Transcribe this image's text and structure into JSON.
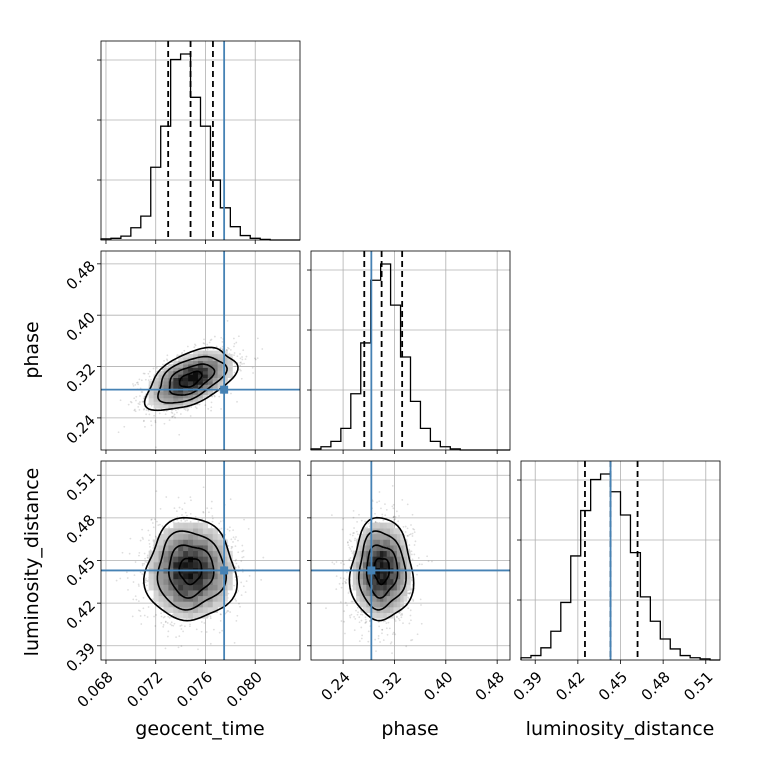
{
  "chart_data": {
    "type": "corner",
    "parameters": [
      {
        "name": "geocent_time",
        "label": "geocent_time",
        "truth": 0.0775,
        "quantiles": [
          0.073,
          0.0748,
          0.0766
        ],
        "median": 0.0748,
        "range": [
          0.0676,
          0.0836
        ],
        "ticks": [
          0.068,
          0.072,
          0.076,
          0.08
        ],
        "tick_labels": [
          "0.068",
          "0.072",
          "0.076",
          "0.080"
        ],
        "hist": {
          "edges": [
            0.0676,
            0.0684,
            0.0692,
            0.07,
            0.0708,
            0.0716,
            0.0724,
            0.0732,
            0.074,
            0.0748,
            0.0756,
            0.0764,
            0.0772,
            0.078,
            0.0788,
            0.0796,
            0.0804,
            0.0812,
            0.082,
            0.0828,
            0.0836
          ],
          "counts": [
            2,
            3,
            7,
            22,
            43,
            131,
            205,
            325,
            335,
            257,
            205,
            108,
            58,
            24,
            8,
            3,
            1,
            0,
            0,
            0
          ]
        }
      },
      {
        "name": "phase",
        "label": "phase",
        "truth": 0.284,
        "quantiles": [
          0.273,
          0.3,
          0.332
        ],
        "median": 0.3,
        "range": [
          0.19,
          0.5
        ],
        "ticks": [
          0.24,
          0.32,
          0.4,
          0.48
        ],
        "tick_labels": [
          "0.24",
          "0.32",
          "0.40",
          "0.48"
        ],
        "hist": {
          "edges": [
            0.19,
            0.2055,
            0.221,
            0.2365,
            0.252,
            0.2675,
            0.283,
            0.2985,
            0.314,
            0.3295,
            0.345,
            0.3605,
            0.376,
            0.3915,
            0.407,
            0.4225,
            0.438,
            0.4535,
            0.469,
            0.4845,
            0.5
          ],
          "counts": [
            1,
            3,
            8,
            20,
            52,
            99,
            157,
            172,
            134,
            86,
            45,
            20,
            8,
            3,
            1,
            0,
            0,
            0,
            0,
            0
          ]
        }
      },
      {
        "name": "luminosity_distance",
        "label": "luminosity_distance",
        "truth": 0.443,
        "quantiles": [
          0.425,
          0.443,
          0.462
        ],
        "median": 0.443,
        "range": [
          0.38,
          0.52
        ],
        "ticks": [
          0.39,
          0.42,
          0.45,
          0.48,
          0.51
        ],
        "tick_labels": [
          "0.39",
          "0.42",
          "0.45",
          "0.48",
          "0.51"
        ],
        "hist": {
          "edges": [
            0.38,
            0.387,
            0.394,
            0.401,
            0.408,
            0.415,
            0.422,
            0.429,
            0.436,
            0.443,
            0.45,
            0.457,
            0.464,
            0.471,
            0.478,
            0.485,
            0.492,
            0.499,
            0.506,
            0.513,
            0.52
          ],
          "counts": [
            2,
            4,
            11,
            26,
            52,
            94,
            135,
            163,
            168,
            152,
            131,
            97,
            57,
            35,
            19,
            10,
            4,
            2,
            1,
            0
          ]
        }
      }
    ],
    "pairs": [
      {
        "x": "geocent_time",
        "y": "phase",
        "center": [
          0.0748,
          0.3
        ],
        "sigma": [
          0.0018,
          0.024
        ],
        "correlation": 0.5
      },
      {
        "x": "geocent_time",
        "y": "luminosity_distance",
        "center": [
          0.0748,
          0.443
        ],
        "sigma": [
          0.0018,
          0.018
        ],
        "correlation": 0.0
      },
      {
        "x": "phase",
        "y": "luminosity_distance",
        "center": [
          0.3,
          0.443
        ],
        "sigma": [
          0.024,
          0.018
        ],
        "correlation": 0.0
      }
    ],
    "contour_levels_sigma": [
      0.5,
      1.0,
      1.5,
      2.0
    ],
    "colors": {
      "truth": "#4682b4",
      "contour": "#000000",
      "grid": "#b0b0b0"
    },
    "grid": true
  }
}
